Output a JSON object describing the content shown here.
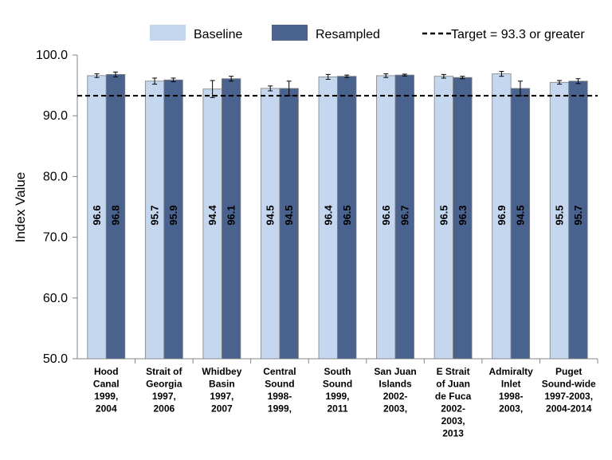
{
  "chart_data": {
    "type": "bar",
    "title": "",
    "xlabel": "",
    "ylabel": "Index Value",
    "ylim": [
      50,
      100
    ],
    "yticks": [
      "50.0",
      "60.0",
      "70.0",
      "80.0",
      "90.0",
      "100.0"
    ],
    "categories": [
      [
        "Hood",
        "Canal",
        "1999,",
        "2004"
      ],
      [
        "Strait of",
        "Georgia",
        "1997,",
        "2006"
      ],
      [
        "Whidbey",
        "Basin",
        "1997,",
        "2007"
      ],
      [
        "Central",
        "Sound",
        "1998-",
        "1999,"
      ],
      [
        "South",
        "Sound",
        "1999,",
        "2011"
      ],
      [
        "San Juan",
        "Islands",
        "2002-",
        "2003,"
      ],
      [
        "E Strait",
        "of Juan",
        "de Fuca",
        "2002-",
        "2003,",
        "2013"
      ],
      [
        "Admiralty",
        "Inlet",
        "1998-",
        "2003,"
      ],
      [
        "Puget",
        "Sound-wide",
        "1997-2003,",
        "2004-2014"
      ]
    ],
    "series": [
      {
        "name": "Baseline",
        "color": "#c5d6ef",
        "values": [
          96.6,
          95.7,
          94.4,
          94.5,
          96.4,
          96.6,
          96.5,
          96.9,
          95.5
        ],
        "labels": [
          "96.6",
          "95.7",
          "94.4",
          "94.5",
          "96.4",
          "96.6",
          "96.5",
          "96.9",
          "95.5"
        ],
        "error": [
          0.3,
          0.5,
          1.4,
          0.4,
          0.4,
          0.3,
          0.3,
          0.4,
          0.3
        ]
      },
      {
        "name": "Resampled",
        "color": "#4a628e",
        "values": [
          96.8,
          95.9,
          96.1,
          94.5,
          96.5,
          96.7,
          96.3,
          94.5,
          95.7
        ],
        "labels": [
          "96.8",
          "95.9",
          "96.1",
          "94.5",
          "96.5",
          "96.7",
          "96.3",
          "94.5",
          "95.7"
        ],
        "error": [
          0.4,
          0.3,
          0.4,
          1.2,
          0.2,
          0.15,
          0.2,
          1.2,
          0.4
        ]
      }
    ],
    "target": {
      "label": "Target = 93.3 or greater",
      "value": 93.3
    },
    "legend_position": "top",
    "grid": false
  }
}
